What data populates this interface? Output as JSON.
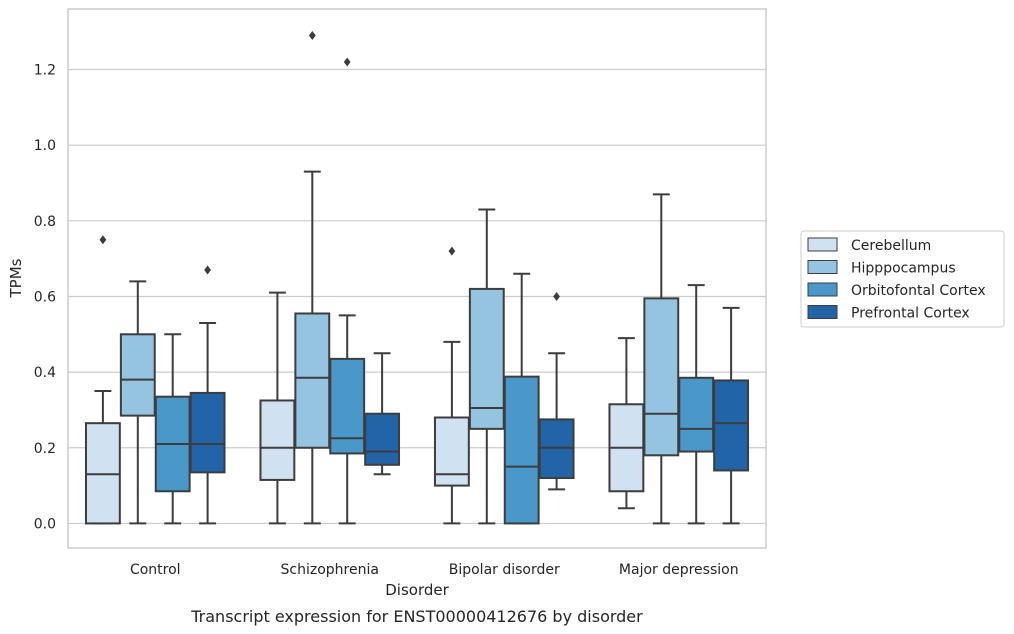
{
  "chart_data": {
    "type": "box",
    "caption": "Transcript expression for ENST00000412676 by disorder",
    "xlabel": "Disorder",
    "ylabel": "TPMs",
    "categories": [
      "Control",
      "Schizophrenia",
      "Bipolar disorder",
      "Major depression"
    ],
    "ylim": [
      -0.065,
      1.36
    ],
    "yticks": [
      0.0,
      0.2,
      0.4,
      0.6,
      0.8,
      1.0,
      1.2
    ],
    "ytick_labels": [
      "0.0",
      "0.2",
      "0.4",
      "0.6",
      "0.8",
      "1.0",
      "1.2"
    ],
    "grid": "horizontal",
    "legend_position": "outside-right",
    "series": [
      {
        "name": "Cerebellum",
        "color": "#d0e1f2",
        "boxes": [
          {
            "whisker_low": 0.0,
            "q1": 0.0,
            "median": 0.13,
            "q3": 0.265,
            "whisker_high": 0.35,
            "outliers": [
              0.75
            ]
          },
          {
            "whisker_low": 0.0,
            "q1": 0.115,
            "median": 0.2,
            "q3": 0.325,
            "whisker_high": 0.61,
            "outliers": []
          },
          {
            "whisker_low": 0.0,
            "q1": 0.1,
            "median": 0.13,
            "q3": 0.28,
            "whisker_high": 0.48,
            "outliers": [
              0.72
            ]
          },
          {
            "whisker_low": 0.04,
            "q1": 0.085,
            "median": 0.2,
            "q3": 0.315,
            "whisker_high": 0.49,
            "outliers": []
          }
        ]
      },
      {
        "name": "Hipppocampus",
        "color": "#94c4df",
        "boxes": [
          {
            "whisker_low": 0.0,
            "q1": 0.285,
            "median": 0.38,
            "q3": 0.5,
            "whisker_high": 0.64,
            "outliers": []
          },
          {
            "whisker_low": 0.0,
            "q1": 0.2,
            "median": 0.385,
            "q3": 0.555,
            "whisker_high": 0.93,
            "outliers": [
              1.29
            ]
          },
          {
            "whisker_low": 0.0,
            "q1": 0.25,
            "median": 0.305,
            "q3": 0.62,
            "whisker_high": 0.83,
            "outliers": []
          },
          {
            "whisker_low": 0.0,
            "q1": 0.18,
            "median": 0.29,
            "q3": 0.595,
            "whisker_high": 0.87,
            "outliers": []
          }
        ]
      },
      {
        "name": "Orbitofontal Cortex",
        "color": "#4a98c9",
        "boxes": [
          {
            "whisker_low": 0.0,
            "q1": 0.085,
            "median": 0.21,
            "q3": 0.335,
            "whisker_high": 0.5,
            "outliers": []
          },
          {
            "whisker_low": 0.0,
            "q1": 0.185,
            "median": 0.225,
            "q3": 0.435,
            "whisker_high": 0.55,
            "outliers": [
              1.22
            ]
          },
          {
            "whisker_low": 0.0,
            "q1": 0.0,
            "median": 0.15,
            "q3": 0.388,
            "whisker_high": 0.66,
            "outliers": []
          },
          {
            "whisker_low": 0.0,
            "q1": 0.19,
            "median": 0.25,
            "q3": 0.385,
            "whisker_high": 0.63,
            "outliers": []
          }
        ]
      },
      {
        "name": "Prefrontal Cortex",
        "color": "#2264a8",
        "boxes": [
          {
            "whisker_low": 0.0,
            "q1": 0.135,
            "median": 0.21,
            "q3": 0.345,
            "whisker_high": 0.53,
            "outliers": [
              0.67
            ]
          },
          {
            "whisker_low": 0.13,
            "q1": 0.155,
            "median": 0.19,
            "q3": 0.29,
            "whisker_high": 0.45,
            "outliers": []
          },
          {
            "whisker_low": 0.09,
            "q1": 0.12,
            "median": 0.2,
            "q3": 0.275,
            "whisker_high": 0.45,
            "outliers": [
              0.6
            ]
          },
          {
            "whisker_low": 0.0,
            "q1": 0.14,
            "median": 0.265,
            "q3": 0.378,
            "whisker_high": 0.57,
            "outliers": []
          }
        ]
      }
    ]
  }
}
